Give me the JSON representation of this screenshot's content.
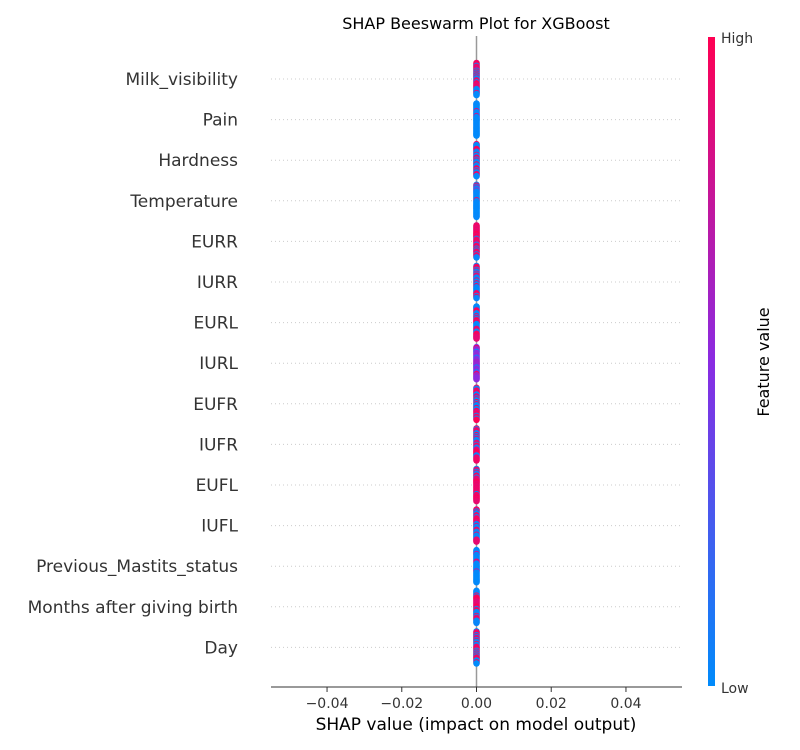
{
  "chart_data": {
    "type": "scatter",
    "subtype": "shap-beeswarm",
    "title": "SHAP Beeswarm Plot for XGBoost",
    "xlabel": "SHAP value (impact on model output)",
    "ylabel": "",
    "xlim": [
      -0.055,
      0.055
    ],
    "xticks": [
      -0.04,
      -0.02,
      0.0,
      0.02,
      0.04
    ],
    "xtick_labels": [
      "−0.04",
      "−0.02",
      "0.00",
      "0.02",
      "0.04"
    ],
    "zero_line": 0.0,
    "grid": "horizontal dotted",
    "features": [
      {
        "name": "Milk_visibility",
        "shap": 0.0,
        "color_mix": "mixed"
      },
      {
        "name": "Pain",
        "shap": 0.0,
        "color_mix": "low"
      },
      {
        "name": "Hardness",
        "shap": 0.0,
        "color_mix": "mixed"
      },
      {
        "name": "Temperature",
        "shap": 0.0,
        "color_mix": "low"
      },
      {
        "name": "EURR",
        "shap": 0.0,
        "color_mix": "high"
      },
      {
        "name": "IURR",
        "shap": 0.0,
        "color_mix": "mixed"
      },
      {
        "name": "EURL",
        "shap": 0.0,
        "color_mix": "mixed"
      },
      {
        "name": "IURL",
        "shap": 0.0,
        "color_mix": "mid"
      },
      {
        "name": "EUFR",
        "shap": 0.0,
        "color_mix": "mixed"
      },
      {
        "name": "IUFR",
        "shap": 0.0,
        "color_mix": "mixed"
      },
      {
        "name": "EUFL",
        "shap": 0.0,
        "color_mix": "high"
      },
      {
        "name": "IUFL",
        "shap": 0.0,
        "color_mix": "mixed"
      },
      {
        "name": "Previous_Mastits_status",
        "shap": 0.0,
        "color_mix": "low"
      },
      {
        "name": "Months after giving birth",
        "shap": 0.0,
        "color_mix": "mixed"
      },
      {
        "name": "Day",
        "shap": 0.0,
        "color_mix": "mixed"
      }
    ],
    "colorbar": {
      "label": "Feature value",
      "high_label": "High",
      "low_label": "Low",
      "high_color": "#ff0052",
      "mid_color": "#8a2be2",
      "low_color": "#008bfb"
    },
    "legend": "right"
  }
}
